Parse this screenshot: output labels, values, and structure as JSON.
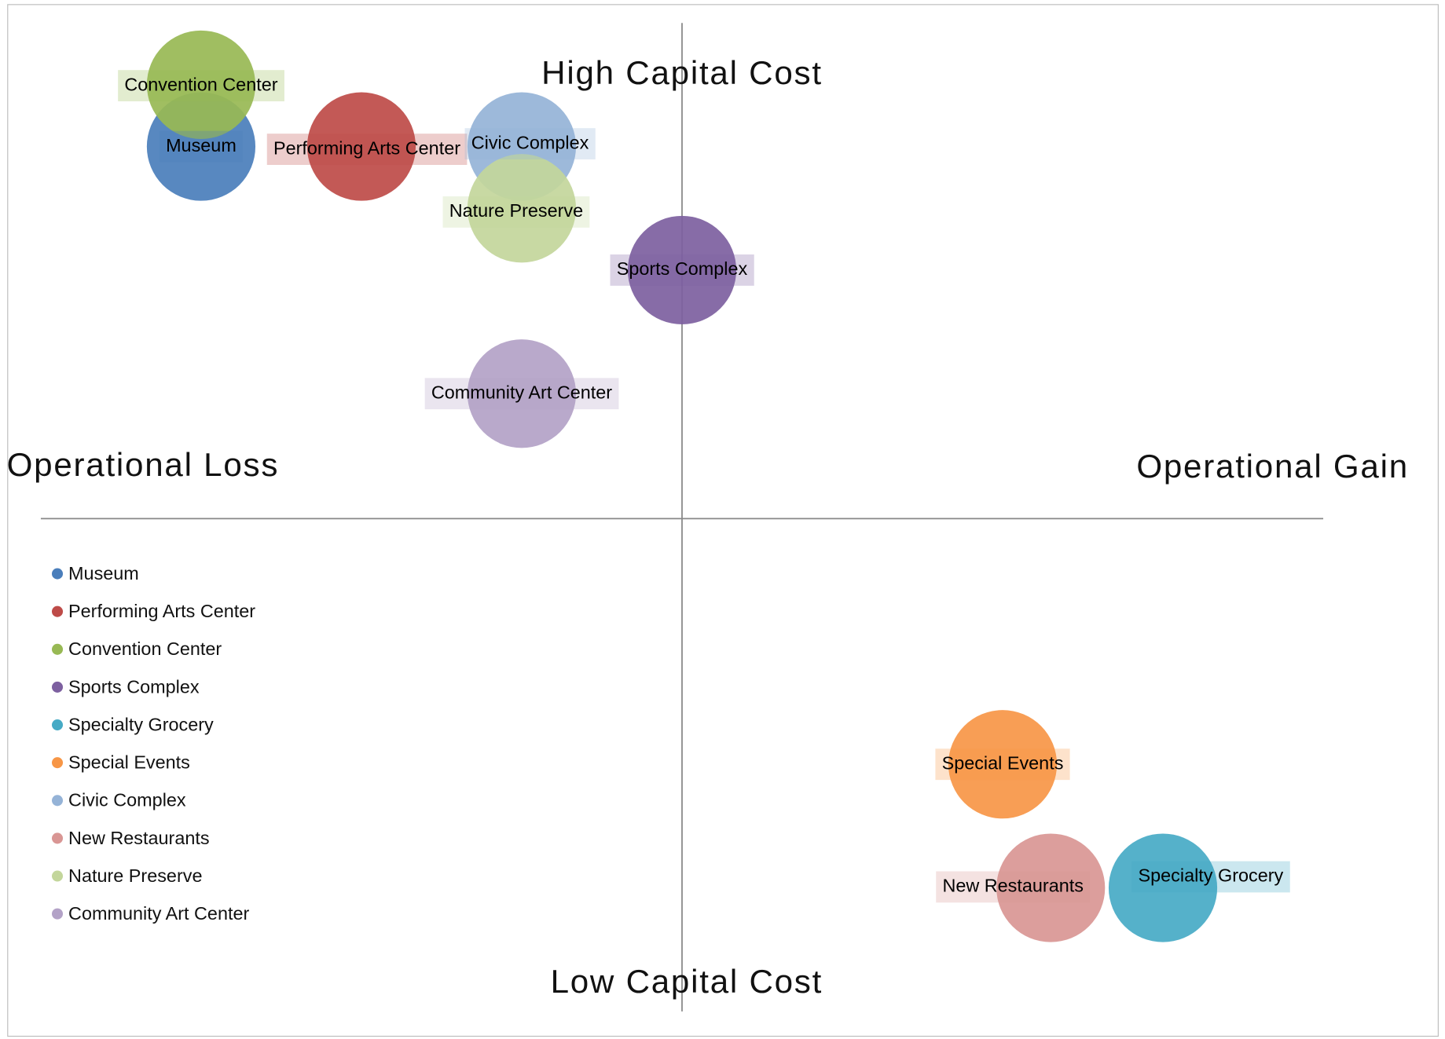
{
  "chart_data": {
    "type": "bubble",
    "annotations": [
      "High Capital Cost",
      "Low Capital Cost",
      "Operational Loss",
      "Operational Gain"
    ],
    "xlim": [
      -4,
      4
    ],
    "ylim": [
      -4,
      4
    ],
    "series": [
      {
        "name": "Museum",
        "color": "#4a7ebb",
        "x": [
          -3.0
        ],
        "values": [
          3.0
        ],
        "sizes": [
          1
        ]
      },
      {
        "name": "Performing Arts Center",
        "color": "#be4b48",
        "x": [
          -2.0
        ],
        "values": [
          3.0
        ],
        "sizes": [
          1
        ]
      },
      {
        "name": "Convention Center",
        "color": "#98b954",
        "x": [
          -3.0
        ],
        "values": [
          3.5
        ],
        "sizes": [
          1
        ]
      },
      {
        "name": "Sports Complex",
        "color": "#7d60a0",
        "x": [
          0.0
        ],
        "values": [
          2.0
        ],
        "sizes": [
          1
        ]
      },
      {
        "name": "Specialty Grocery",
        "color": "#46aac5",
        "x": [
          3.0
        ],
        "values": [
          -3.0
        ],
        "sizes": [
          1
        ]
      },
      {
        "name": "Special Events",
        "color": "#f79646",
        "x": [
          2.0
        ],
        "values": [
          -2.0
        ],
        "sizes": [
          1
        ]
      },
      {
        "name": "Civic Complex",
        "color": "#95b3d7",
        "x": [
          -1.0
        ],
        "values": [
          3.0
        ],
        "sizes": [
          1
        ]
      },
      {
        "name": "New Restaurants",
        "color": "#d99694",
        "x": [
          2.3
        ],
        "values": [
          -3.0
        ],
        "sizes": [
          1
        ]
      },
      {
        "name": "Nature Preserve",
        "color": "#c3d69b",
        "x": [
          -1.0
        ],
        "values": [
          2.5
        ],
        "sizes": [
          1
        ]
      },
      {
        "name": "Community Art Center",
        "color": "#b3a2c7",
        "x": [
          -1.0
        ],
        "values": [
          1.0
        ],
        "sizes": [
          1
        ]
      }
    ]
  }
}
